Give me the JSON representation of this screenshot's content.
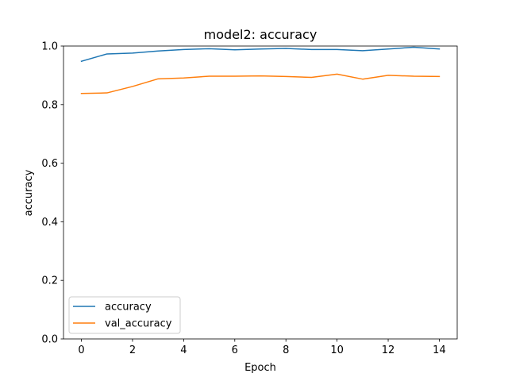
{
  "chart_data": {
    "type": "line",
    "title": "model2: accuracy",
    "xlabel": "Epoch",
    "ylabel": "accuracy",
    "xlim": [
      -0.7,
      14.7
    ],
    "ylim": [
      0.0,
      1.0
    ],
    "xticks": [
      0,
      2,
      4,
      6,
      8,
      10,
      12,
      14
    ],
    "yticks": [
      0.0,
      0.2,
      0.4,
      0.6,
      0.8,
      1.0
    ],
    "ytick_labels": [
      "0.0",
      "0.2",
      "0.4",
      "0.6",
      "0.8",
      "1.0"
    ],
    "grid": false,
    "legend": {
      "position": "lower-left"
    },
    "x": [
      0,
      1,
      2,
      3,
      4,
      5,
      6,
      7,
      8,
      9,
      10,
      11,
      12,
      13,
      14
    ],
    "series": [
      {
        "name": "accuracy",
        "color": "#1f77b4",
        "values": [
          0.948,
          0.973,
          0.976,
          0.983,
          0.988,
          0.991,
          0.987,
          0.99,
          0.992,
          0.988,
          0.988,
          0.984,
          0.99,
          0.996,
          0.99
        ]
      },
      {
        "name": "val_accuracy",
        "color": "#ff7f0e",
        "values": [
          0.838,
          0.84,
          0.862,
          0.888,
          0.891,
          0.897,
          0.897,
          0.898,
          0.896,
          0.893,
          0.904,
          0.887,
          0.9,
          0.897,
          0.896
        ]
      }
    ]
  }
}
